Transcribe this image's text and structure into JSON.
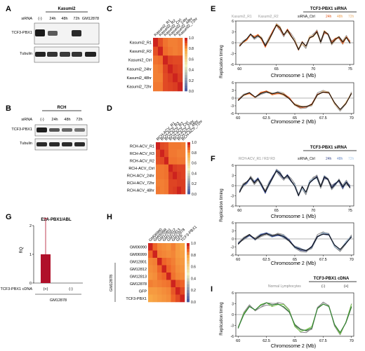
{
  "panels": {
    "A": {
      "label": "A",
      "header": "Kasumi2",
      "sirna_label": "siRNA",
      "lanes": [
        "(-)",
        "24h",
        "48h",
        "72h",
        "GM12878"
      ],
      "rows": [
        "TCF3-PBX1",
        "Tubulin"
      ]
    },
    "B": {
      "label": "B",
      "header": "RCH",
      "sirna_label": "siRNA",
      "lanes": [
        "(-)",
        "24h",
        "48h",
        "72h"
      ],
      "rows": [
        "TCF3-PBX1",
        "Tubulin"
      ]
    },
    "G": {
      "label": "G",
      "title": "E2A-PBX1/ABL",
      "ylabel": "RQ",
      "cdna_label": "TCF3-PBX1 cDNA",
      "groups": [
        "(+)",
        "(-)"
      ],
      "cell_line": "GM12878"
    },
    "C": {
      "label": "C"
    },
    "D": {
      "label": "D"
    },
    "H": {
      "label": "H",
      "group_label": "GM12878"
    },
    "E": {
      "label": "E",
      "header": "TCF3-PBX1 siRNA",
      "legend": [
        "Kasumi2_R1",
        "Kasumi2_R2",
        "siRNA_Ctrl",
        "24h",
        "48h",
        "72h"
      ],
      "ylabel": "Replication timing",
      "xlabel1": "Chromosome 1 (Mb)",
      "xlabel2": "Chromosome 2 (Mb)"
    },
    "F": {
      "label": "F",
      "header": "TCF3-PBX1 siRNA",
      "legend": [
        "RCH-ACV_R1 / R2/ R3",
        "siRNA_Ctrl",
        "24h",
        "48h",
        "72h"
      ],
      "ylabel": "Replication timing",
      "xlabel1": "Chromosome 1 (Mb)",
      "xlabel2": "Chromosome 2 (Mb)"
    },
    "I": {
      "label": "I",
      "header": "TCF3-PBX1 cDNA",
      "legend": [
        "Normal Lymphocytes",
        "(-)",
        "(+)"
      ],
      "ylabel": "Replication timing",
      "xlabel": "Chromosome 2 (Mb)"
    }
  },
  "chart_data": [
    {
      "type": "bar",
      "panel": "G",
      "title": "E2A-PBX1/ABL",
      "categories": [
        "(+)",
        "(-)"
      ],
      "values": [
        1.0,
        0.0
      ],
      "error": [
        1.25,
        0
      ],
      "ylabel": "RQ",
      "ylim": [
        0,
        2
      ],
      "yticks": [
        0,
        1,
        2
      ],
      "color": "#b0102a"
    },
    {
      "type": "heatmap",
      "panel": "C",
      "rows": [
        "Kasumi2_R1",
        "Kasumi2_R2",
        "Kasumi2_Ctrl",
        "Kasumi2_24hr",
        "Kasumi2_48hr",
        "Kasumi2_72hr"
      ],
      "columns": [
        "Kasumi2_R1",
        "Kasumi2_R2",
        "Kasumi2_Ctrl",
        "Kasumi2_24hr",
        "Kasumi2_48hr",
        "Kasumi2_72hr"
      ],
      "values": [
        [
          1.0,
          0.93,
          0.88,
          0.86,
          0.86,
          0.87
        ],
        [
          0.93,
          1.0,
          0.89,
          0.87,
          0.86,
          0.87
        ],
        [
          0.88,
          0.89,
          1.0,
          0.95,
          0.94,
          0.94
        ],
        [
          0.86,
          0.87,
          0.95,
          1.0,
          0.96,
          0.95
        ],
        [
          0.86,
          0.86,
          0.94,
          0.96,
          1.0,
          0.96
        ],
        [
          0.87,
          0.87,
          0.94,
          0.95,
          0.96,
          1.0
        ]
      ],
      "scale": [
        0,
        1.0
      ],
      "scale_ticks": [
        "1.0",
        "0.8",
        "0.6",
        "0.4",
        "0.2",
        "0.0"
      ]
    },
    {
      "type": "heatmap",
      "panel": "D",
      "rows": [
        "RCH-ACV_R1",
        "RCH-ACV_R3",
        "RCH-ACV_R2",
        "RCH-ACV_Ctrl",
        "RCH-ACV_24hr",
        "RCH-ACV_72hr",
        "RCH-ACV_48hr"
      ],
      "columns": [
        "RCH-ACV_R1",
        "RCH-ACV_R3",
        "RCH-ACV_R2",
        "RCH-ACV_Ctrl",
        "RCH-ACV_24hr",
        "RCH-ACV_48hr",
        "RCH-ACV_72hr"
      ],
      "values": [
        [
          1.0,
          0.94,
          0.93,
          0.87,
          0.87,
          0.87,
          0.86
        ],
        [
          0.94,
          1.0,
          0.94,
          0.87,
          0.87,
          0.86,
          0.86
        ],
        [
          0.93,
          0.94,
          1.0,
          0.88,
          0.88,
          0.87,
          0.87
        ],
        [
          0.87,
          0.87,
          0.88,
          1.0,
          0.96,
          0.95,
          0.95
        ],
        [
          0.87,
          0.87,
          0.88,
          0.96,
          1.0,
          0.96,
          0.95
        ],
        [
          0.86,
          0.86,
          0.87,
          0.95,
          0.95,
          0.96,
          0.96
        ],
        [
          0.87,
          0.86,
          0.87,
          0.95,
          0.96,
          1.0,
          0.96
        ]
      ],
      "scale": [
        0,
        1.0
      ],
      "scale_ticks": [
        "1.0",
        "0.8",
        "0.6",
        "0.4",
        "0.2",
        "0.0"
      ]
    },
    {
      "type": "heatmap",
      "panel": "H",
      "rows": [
        "GM06990",
        "GM06999",
        "GM12801",
        "GM12812",
        "GM12813",
        "GM12878",
        "GFP",
        "TCF3-PBX1"
      ],
      "columns": [
        "GM06990",
        "GM06999",
        "GM12801",
        "GM12812",
        "GM12813",
        "GM12878",
        "GFP",
        "TCF3-PBX1"
      ],
      "values": [
        [
          1.0,
          0.9,
          0.85,
          0.84,
          0.83,
          0.86,
          0.82,
          0.8
        ],
        [
          0.9,
          1.0,
          0.86,
          0.85,
          0.84,
          0.85,
          0.82,
          0.81
        ],
        [
          0.85,
          0.86,
          1.0,
          0.9,
          0.88,
          0.86,
          0.83,
          0.82
        ],
        [
          0.84,
          0.85,
          0.9,
          1.0,
          0.9,
          0.87,
          0.84,
          0.83
        ],
        [
          0.83,
          0.84,
          0.88,
          0.9,
          1.0,
          0.88,
          0.85,
          0.84
        ],
        [
          0.86,
          0.85,
          0.86,
          0.87,
          0.88,
          1.0,
          0.92,
          0.9
        ],
        [
          0.82,
          0.82,
          0.83,
          0.84,
          0.85,
          0.92,
          1.0,
          0.94
        ],
        [
          0.8,
          0.81,
          0.82,
          0.83,
          0.84,
          0.9,
          0.94,
          1.0
        ]
      ],
      "scale": [
        0,
        1.0
      ],
      "scale_ticks": [
        "1.0",
        "0.8",
        "0.6",
        "0.4",
        "0.2",
        "0.0"
      ]
    },
    {
      "type": "line",
      "panel": "E-chr1",
      "xlim": [
        59.5,
        75.5
      ],
      "xticks": [
        60,
        65,
        70,
        75
      ],
      "ylim": [
        -6,
        6
      ],
      "yticks": [
        -6,
        -3,
        0,
        3,
        6
      ],
      "xlabel": "Chromosome 1 (Mb)",
      "x": [
        60,
        60.5,
        61,
        61.5,
        62,
        62.5,
        63,
        63.5,
        64,
        64.5,
        65,
        65.5,
        66,
        66.5,
        67,
        67.5,
        68,
        68.5,
        69,
        69.5,
        70,
        70.5,
        71,
        71.5,
        72,
        72.5,
        73,
        73.5,
        74,
        74.5,
        75
      ],
      "base": [
        -1,
        0,
        1,
        2.5,
        1.5,
        2,
        1,
        -1,
        1,
        3,
        5,
        4,
        2,
        3.5,
        2,
        0.5,
        -2,
        0,
        -1,
        1.5,
        2,
        3,
        0,
        3,
        2.5,
        0,
        1,
        1.5,
        0,
        1.5,
        0
      ]
    },
    {
      "type": "line",
      "panel": "E-chr2",
      "xlim": [
        59.8,
        70.2
      ],
      "xticks": [
        60,
        62.5,
        65,
        67.5,
        70
      ],
      "ylim": [
        -6,
        6
      ],
      "yticks": [
        -6,
        -3,
        0,
        3,
        6
      ],
      "xlabel": "Chromosome 2 (Mb)",
      "x": [
        60,
        60.5,
        61,
        61.5,
        62,
        62.5,
        63,
        63.5,
        64,
        64.5,
        65,
        65.5,
        66,
        66.5,
        67,
        67.5,
        68,
        68.5,
        69,
        69.5,
        70
      ],
      "base": [
        -1,
        1,
        2,
        0.5,
        2,
        2.5,
        1.5,
        2,
        1.5,
        0,
        -2.5,
        -3.5,
        -3.5,
        -2.5,
        1.5,
        2.5,
        2,
        -2,
        -4.5,
        -2,
        2
      ]
    },
    {
      "type": "line",
      "panel": "F-chr1",
      "xlim": [
        59.5,
        75.5
      ],
      "xticks": [
        60,
        65,
        70,
        75
      ],
      "ylim": [
        -6,
        6
      ],
      "yticks": [
        -6,
        -3,
        0,
        3,
        6
      ],
      "xlabel": "Chromosome 1 (Mb)",
      "x": [
        60,
        60.5,
        61,
        61.5,
        62,
        62.5,
        63,
        63.5,
        64,
        64.5,
        65,
        65.5,
        66,
        66.5,
        67,
        67.5,
        68,
        68.5,
        69,
        69.5,
        70,
        70.5,
        71,
        71.5,
        72,
        72.5,
        73,
        73.5,
        74,
        74.5,
        75
      ],
      "base": [
        -2,
        0,
        1,
        2.5,
        1,
        2,
        0,
        -2,
        0.5,
        2.5,
        4.5,
        3.5,
        2,
        3,
        1.5,
        0,
        -3,
        -0.5,
        -2,
        1,
        2,
        2.5,
        -0.5,
        2.5,
        2,
        -0.5,
        0.5,
        1.5,
        -0.5,
        1,
        -0.5
      ]
    },
    {
      "type": "line",
      "panel": "F-chr2",
      "xlim": [
        59.8,
        70.2
      ],
      "xticks": [
        60,
        62.5,
        65,
        67.5,
        70
      ],
      "ylim": [
        -6,
        6
      ],
      "yticks": [
        -6,
        -3,
        0,
        3,
        6
      ],
      "xlabel": "Chromosome 2 (Mb)",
      "x": [
        60,
        60.5,
        61,
        61.5,
        62,
        62.5,
        63,
        63.5,
        64,
        64.5,
        65,
        65.5,
        66,
        66.5,
        67,
        67.5,
        68,
        68.5,
        69,
        69.5,
        70
      ],
      "base": [
        -2,
        0,
        1.5,
        0,
        1.5,
        2,
        1,
        1.5,
        1,
        -0.5,
        -3,
        -4,
        -4.5,
        -3,
        1,
        2,
        1.5,
        -2.5,
        -4,
        -1.5,
        1
      ]
    },
    {
      "type": "line",
      "panel": "I-chr2",
      "xlim": [
        59.8,
        70.2
      ],
      "xticks": [
        60,
        62.5,
        65,
        67.5,
        70
      ],
      "ylim": [
        -6,
        6
      ],
      "yticks": [
        -6,
        -3,
        0,
        3,
        6
      ],
      "xlabel": "Chromosome 2 (Mb)",
      "x": [
        60,
        60.5,
        61,
        61.5,
        62,
        62.5,
        63,
        63.5,
        64,
        64.5,
        65,
        65.5,
        66,
        66.5,
        67,
        67.5,
        68,
        68.5,
        69,
        69.5,
        70
      ],
      "base": [
        -4,
        0,
        2.5,
        1.5,
        2.5,
        3,
        2.5,
        3,
        2.5,
        1,
        -3,
        -4.5,
        -4.5,
        -3.5,
        2,
        3,
        2,
        -3,
        -5,
        -2,
        2.5
      ]
    }
  ],
  "colors": {
    "kasumi_rep": "#9a9a9a",
    "ctrl": "#111111",
    "h24": "#e0581e",
    "h48": "#f0a050",
    "h72": "#f7c890",
    "rch_rep": "#8c8c8c",
    "rch24": "#3b4a8c",
    "rch48": "#6a8cc8",
    "rch72": "#a8c8e8",
    "lymph": "#8a8a8a",
    "cdna_minus": "#2e7d32",
    "cdna_plus": "#7cc84c",
    "bar": "#b0102a"
  }
}
